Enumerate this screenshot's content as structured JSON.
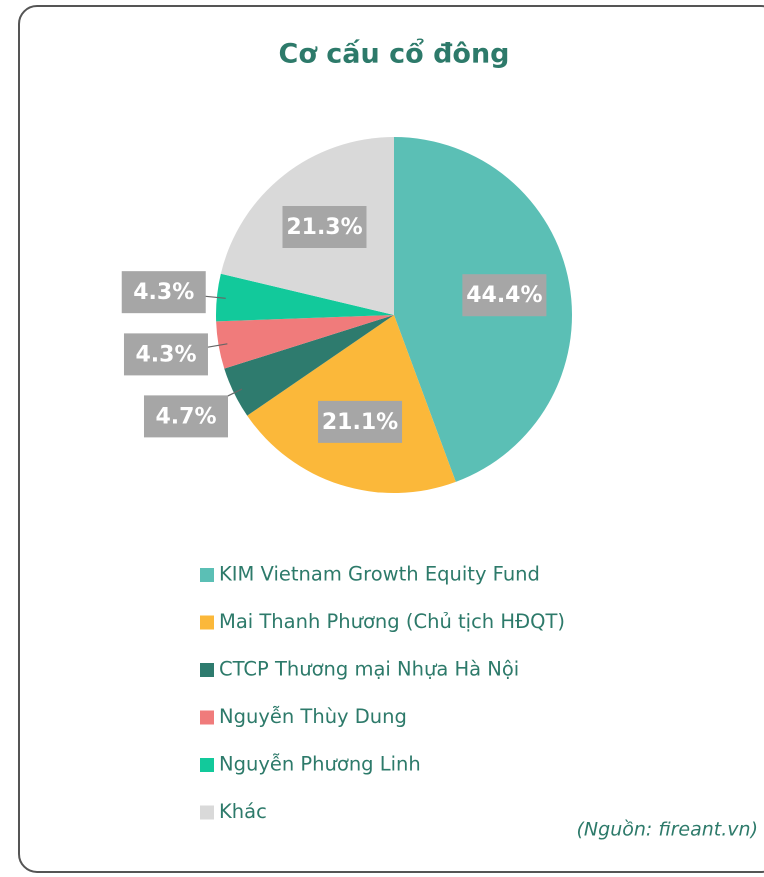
{
  "chart_data": {
    "type": "pie",
    "title": "Cơ cấu cổ đông",
    "categories": [
      "KIM Vietnam Growth Equity Fund",
      "Mai Thanh Phương (Chủ tịch HĐQT)",
      "CTCP Thương mại Nhựa Hà Nội",
      "Nguyễn Thùy Dung",
      "Nguyễn Phương Linh",
      "Khác"
    ],
    "values": [
      44.4,
      21.1,
      4.7,
      4.3,
      4.3,
      21.3
    ],
    "value_labels": [
      "44.4%",
      "21.1%",
      "4.7%",
      "4.3%",
      "4.3%",
      "21.3%"
    ],
    "colors": [
      "#5bbfb5",
      "#fbb83a",
      "#2e7b6e",
      "#f07b7b",
      "#12c99b",
      "#d9d9d9"
    ],
    "legend": "bottom",
    "source": "(Nguồn: fireant.vn)"
  }
}
